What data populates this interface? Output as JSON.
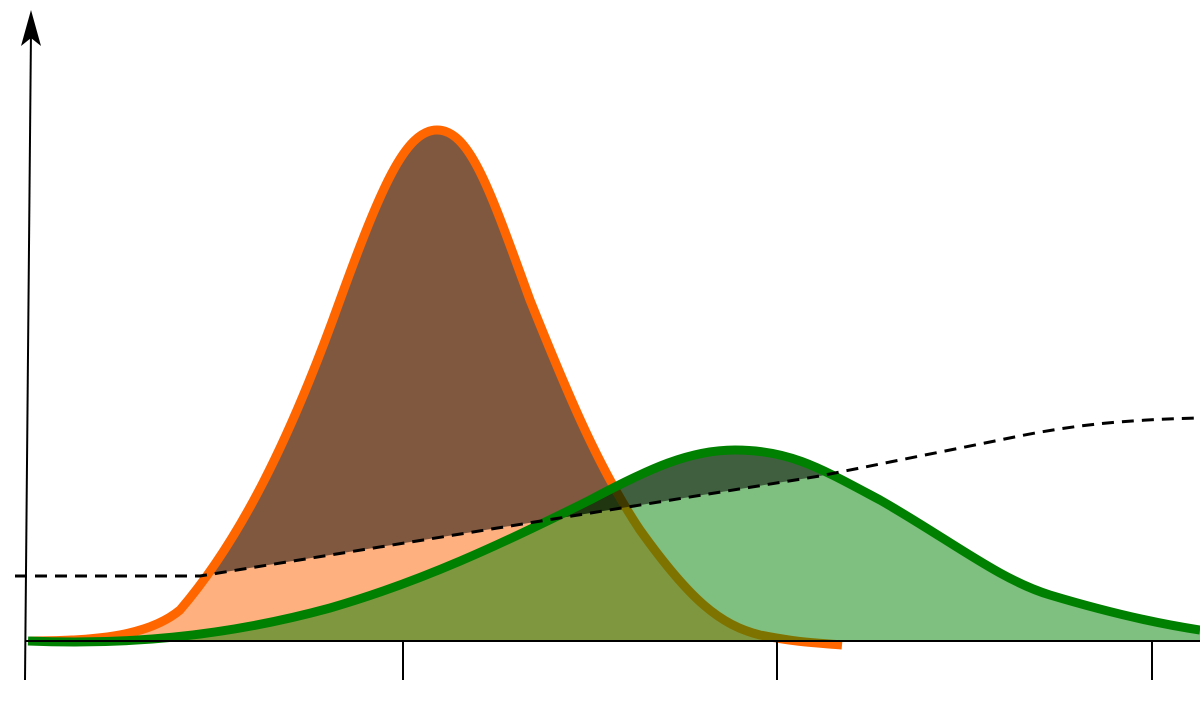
{
  "diagram": {
    "axes": {
      "x_arrow": false,
      "y_arrow": true,
      "x_tick_count": 3
    },
    "curves": [
      {
        "id": "tall-curve",
        "stroke_color": "#ff6600",
        "fill_color": "#ffb07f",
        "fill_above_threshold_color": "#805840"
      },
      {
        "id": "flat-curve",
        "stroke_color": "#008000",
        "fill_color": "#80c080",
        "fill_above_threshold_color": "#405a40"
      }
    ],
    "threshold_line": {
      "style": "dashed",
      "color": "#000000"
    }
  }
}
